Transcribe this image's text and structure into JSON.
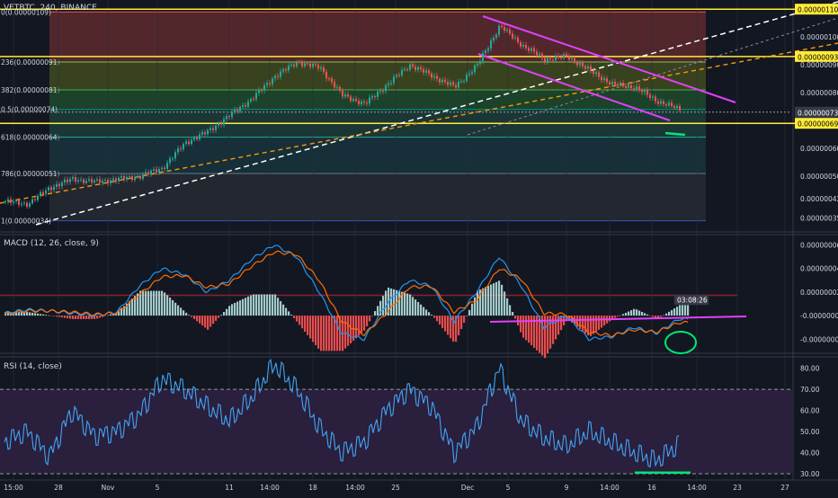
{
  "symbol_title": "VETBTC, 240, BINANCE",
  "colors": {
    "background": "#131722",
    "up": "#26a69a",
    "down": "#ef5350",
    "yellow": "#ffeb3b",
    "magenta": "#e040fb",
    "white_dash": "#ffffff",
    "orange_dash": "#ff9800",
    "macd_line": "#2196f3",
    "signal_line": "#ff6d00",
    "rsi_line": "#42a5f5",
    "annotation_green": "#00e676",
    "hist_up": "#b2dfdb",
    "hist_down": "#ff5252"
  },
  "price_axis": {
    "ticks": [
      "0.00000100",
      "0.00000090",
      "0.00000080",
      "0.00000060",
      "0.00000050",
      "0.00000042",
      "0.00000035"
    ],
    "badges": [
      {
        "label": "0.00000110",
        "style": "yellow"
      },
      {
        "label": "0.00000093",
        "style": "yellow"
      },
      {
        "label": "0.00000073",
        "style": "dark"
      },
      {
        "label": "0.00000069",
        "style": "yellow"
      }
    ],
    "countdown": "03:08:26",
    "ylim": [
      3e-07,
      1.12e-06
    ]
  },
  "fib_levels": [
    {
      "label": "0(0.00000109)",
      "price": 1.09e-06,
      "color": "#ef5350"
    },
    {
      "label": "236(0.00000091)",
      "price": 9.1e-07,
      "color": "#8bc34a"
    },
    {
      "label": "382(0.00000081)",
      "price": 8.1e-07,
      "color": "#4caf50"
    },
    {
      "label": "0.5(0.00000074)",
      "price": 7.4e-07,
      "color": "#009688"
    },
    {
      "label": "618(0.00000064)",
      "price": 6.4e-07,
      "color": "#26a69a"
    },
    {
      "label": "786(0.00000051)",
      "price": 5.1e-07,
      "color": "#607d8b"
    },
    {
      "label": "1(0.00000034)",
      "price": 3.4e-07,
      "color": "#3f51b5"
    }
  ],
  "x_axis": {
    "labels": [
      "15:00",
      "28",
      "Nov",
      "5",
      "11",
      "14:00",
      "18",
      "14:00",
      "25",
      "Dec",
      "5",
      "9",
      "14:00",
      "16",
      "14:00",
      "20",
      "23",
      "27"
    ]
  },
  "macd": {
    "title": "MACD (12, 26, close, 9)",
    "ticks": [
      "0.00000006",
      "0.00000004",
      "0.00000002",
      "-0.00000000",
      "-0.00000002"
    ],
    "ylim": [
      -3.2e-08,
      6.8e-08
    ]
  },
  "rsi": {
    "title": "RSI (14, close)",
    "ticks": [
      "80.00",
      "70.00",
      "60.00",
      "50.00",
      "40.00",
      "30.00"
    ],
    "ylim": [
      27,
      85
    ],
    "bands": [
      30,
      70
    ]
  },
  "chart_data": [
    {
      "type": "line",
      "title": "VETBTC, 240, BINANCE",
      "series": [
        {
          "x": [
            0,
            25,
            50,
            75,
            100,
            125,
            150,
            175,
            200,
            225,
            250,
            275,
            300,
            325,
            350,
            375,
            400,
            425,
            450,
            475,
            500,
            525,
            550,
            575,
            600,
            625,
            650,
            675,
            700,
            725,
            750
          ],
          "values": [
            4.1e-07,
            4e-07,
            4.6e-07,
            4.9e-07,
            4.8e-07,
            4.9e-07,
            5e-07,
            5.3e-07,
            6.2e-07,
            6.6e-07,
            7.2e-07,
            7.8e-07,
            8.6e-07,
            9.1e-07,
            8.9e-07,
            7.9e-07,
            7.6e-07,
            8.3e-07,
            9e-07,
            8.6e-07,
            8.2e-07,
            9e-07,
            1.04e-06,
            9.7e-07,
            9.2e-07,
            9.3e-07,
            8.8e-07,
            8.3e-07,
            8.2e-07,
            7.7e-07,
            7.4e-07
          ]
        }
      ]
    },
    {
      "type": "bar",
      "title": "MACD (12, 26, close, 9)",
      "x": [
        0,
        25,
        50,
        75,
        100,
        125,
        150,
        175,
        200,
        225,
        250,
        275,
        300,
        325,
        350,
        375,
        400,
        425,
        450,
        475,
        500,
        525,
        550,
        575,
        600,
        625,
        650,
        675,
        700,
        725,
        750
      ],
      "series": [
        {
          "values": [
            2e-09,
            5e-09,
            4e-09,
            2e-09,
            0.0,
            3e-09,
            2.5e-08,
            4e-08,
            3.5e-08,
            2e-08,
            3e-08,
            4.8e-08,
            6e-08,
            5e-08,
            2e-08,
            -1.5e-08,
            -2e-08,
            1e-08,
            3e-08,
            2.5e-08,
            -5e-09,
            2e-08,
            5e-08,
            2.5e-08,
            -1e-08,
            0.0,
            -2e-08,
            -1.8e-08,
            -1e-08,
            -1.5e-08,
            -3e-09
          ]
        },
        {
          "values": [
            1e-09,
            4e-09,
            4e-09,
            3e-09,
            1e-09,
            2e-09,
            1.8e-08,
            3.3e-08,
            3.4e-08,
            2.4e-08,
            2.7e-08,
            4.2e-08,
            5.4e-08,
            5.2e-08,
            3e-08,
            -5e-09,
            -1.6e-08,
            2e-09,
            2.4e-08,
            2.5e-08,
            3e-09,
            1.3e-08,
            4e-08,
            3.1e-08,
            2e-09,
            1e-09,
            -1.4e-08,
            -1.7e-08,
            -1.2e-08,
            -1.4e-08,
            -6e-09
          ]
        }
      ]
    },
    {
      "type": "line",
      "title": "RSI (14, close)",
      "x": [
        0,
        25,
        50,
        75,
        100,
        125,
        150,
        175,
        200,
        225,
        250,
        275,
        300,
        325,
        350,
        375,
        400,
        425,
        450,
        475,
        500,
        525,
        550,
        575,
        600,
        625,
        650,
        675,
        700,
        725,
        750
      ],
      "series": [
        {
          "values": [
            45,
            50,
            38,
            60,
            48,
            50,
            58,
            75,
            70,
            62,
            55,
            66,
            82,
            70,
            52,
            40,
            45,
            60,
            70,
            62,
            40,
            52,
            80,
            55,
            47,
            43,
            50,
            45,
            40,
            36,
            44
          ]
        }
      ],
      "ylim": [
        27,
        85
      ]
    }
  ]
}
